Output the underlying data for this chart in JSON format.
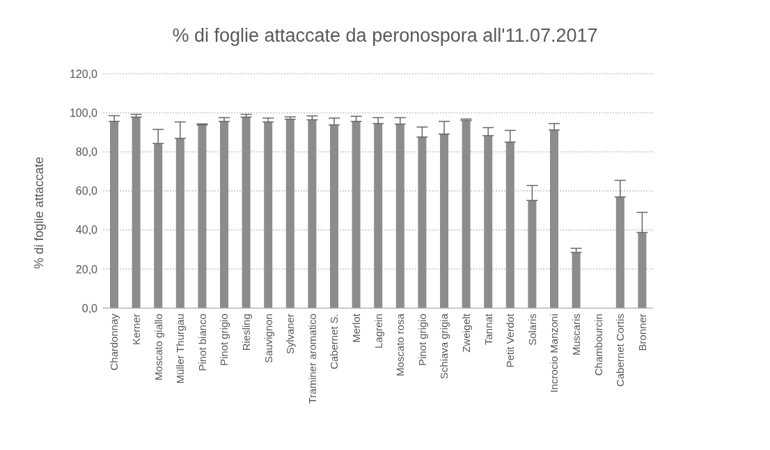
{
  "chart_data": {
    "type": "bar",
    "title": "% di foglie attaccate da peronospora all'11.07.2017",
    "ylabel": "% di foglie attaccate",
    "categories": [
      "Chardonnay",
      "Kerner",
      "Moscato giallo",
      "Müller Thurgau",
      "Pinot bianco",
      "Pinot grigio",
      "Riesling",
      "Sauvignon",
      "Sylvaner",
      "Traminer aromatico",
      "Cabernet S.",
      "Merlot",
      "Lagrein",
      "Moscato rosa",
      "Pinot grigio",
      "Schiava grigia",
      "Zweigelt",
      "Tannat",
      "Petit Verdot",
      "Solaris",
      "Incrocio Manzoni",
      "Muscaris",
      "Chambourcin",
      "Cabernet Cortis",
      "Bronner"
    ],
    "values": [
      95.6,
      97.8,
      84.3,
      86.9,
      93.8,
      95.6,
      97.8,
      95.3,
      96.7,
      96.4,
      93.8,
      95.6,
      94.5,
      94.2,
      87.6,
      89.1,
      96.0,
      88.3,
      85.0,
      55.1,
      91.2,
      28.5,
      0,
      56.9,
      38.7
    ],
    "errors": [
      [
        95.6,
        98.5
      ],
      [
        97.8,
        99.2
      ],
      [
        84.3,
        91.5
      ],
      [
        86.9,
        95.3
      ],
      [
        93.8,
        94.3
      ],
      [
        95.6,
        97.5
      ],
      [
        97.8,
        99.2
      ],
      [
        95.3,
        97.3
      ],
      [
        96.7,
        97.9
      ],
      [
        96.4,
        98.4
      ],
      [
        93.8,
        97.3
      ],
      [
        95.6,
        98.2
      ],
      [
        94.5,
        97.5
      ],
      [
        94.2,
        97.5
      ],
      [
        87.6,
        92.7
      ],
      [
        89.1,
        95.6
      ],
      [
        96.0,
        96.8
      ],
      [
        88.3,
        92.4
      ],
      [
        85.0,
        91.0
      ],
      [
        55.1,
        62.8
      ],
      [
        91.2,
        94.5
      ],
      [
        28.5,
        30.6
      ],
      null,
      [
        56.9,
        65.4
      ],
      [
        38.7,
        49.0
      ]
    ],
    "color": "#8c8c8c",
    "ylim": [
      0,
      120
    ],
    "yticks": [
      {
        "value": 0,
        "label": "0,0"
      },
      {
        "value": 20,
        "label": "20,0"
      },
      {
        "value": 40,
        "label": "40,0"
      },
      {
        "value": 60,
        "label": "60,0"
      },
      {
        "value": 80,
        "label": "80,0"
      },
      {
        "value": 100,
        "label": "100,0"
      },
      {
        "value": 120,
        "label": "120,0"
      }
    ],
    "grid": "y"
  }
}
